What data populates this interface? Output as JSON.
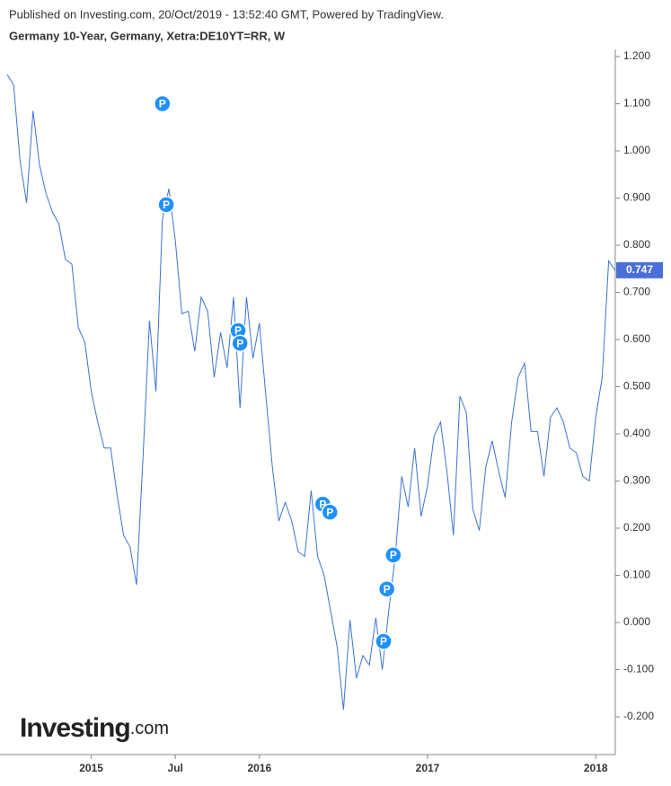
{
  "header": {
    "published": "Published on Investing.com, 20/Oct/2019 - 13:52:40 GMT, Powered by TradingView.",
    "logo_main": "Investing",
    "logo_suffix": ".com"
  },
  "chart_data": {
    "type": "line",
    "title": "Germany 10-Year, Germany, Xetra:DE10YT=RR, W",
    "categories": [
      null,
      null,
      null,
      null,
      null,
      null,
      null,
      null,
      null,
      null,
      null,
      null,
      null,
      "2015",
      null,
      null,
      null,
      null,
      null,
      null,
      null,
      null,
      null,
      null,
      null,
      null,
      "Jul",
      null,
      null,
      null,
      null,
      null,
      null,
      null,
      null,
      null,
      null,
      null,
      null,
      "2016",
      null,
      null,
      null,
      null,
      null,
      null,
      null,
      null,
      null,
      null,
      null,
      null,
      null,
      null,
      null,
      null,
      null,
      null,
      null,
      null,
      null,
      null,
      null,
      null,
      null,
      "2017",
      null,
      null,
      null,
      null,
      null,
      null,
      null,
      null,
      null,
      null,
      null,
      null,
      null,
      null,
      null,
      null,
      null,
      null,
      null,
      null,
      null,
      null,
      null,
      null,
      null,
      "2018",
      null,
      null,
      null
    ],
    "series": [
      {
        "name": "DE10YT",
        "color": "#3b73d4",
        "values": [
          1.162,
          1.14,
          0.977,
          0.89,
          1.085,
          0.97,
          0.91,
          0.87,
          0.845,
          0.77,
          0.76,
          0.625,
          0.595,
          0.49,
          0.425,
          0.37,
          0.37,
          0.27,
          0.185,
          0.16,
          0.08,
          0.35,
          0.64,
          0.49,
          0.855,
          0.92,
          0.81,
          0.655,
          0.66,
          0.575,
          0.69,
          0.66,
          0.52,
          0.615,
          0.54,
          0.69,
          0.455,
          0.69,
          0.56,
          0.635,
          0.48,
          0.33,
          0.215,
          0.255,
          0.215,
          0.15,
          0.14,
          0.28,
          0.14,
          0.1,
          0.025,
          -0.05,
          -0.185,
          0.005,
          -0.118,
          -0.07,
          -0.09,
          0.01,
          -0.1,
          0.025,
          0.14,
          0.31,
          0.245,
          0.37,
          0.225,
          0.29,
          0.395,
          0.425,
          0.32,
          0.185,
          0.48,
          0.445,
          0.24,
          0.195,
          0.33,
          0.385,
          0.32,
          0.265,
          0.425,
          0.52,
          0.55,
          0.405,
          0.405,
          0.31,
          0.435,
          0.455,
          0.425,
          0.37,
          0.36,
          0.31,
          0.3,
          0.435,
          0.52,
          0.767,
          0.747
        ]
      }
    ],
    "ylim": [
      -0.28,
      1.26
    ],
    "yticks": [
      {
        "value": -0.2,
        "label": "-0.200"
      },
      {
        "value": -0.1,
        "label": "-0.100"
      },
      {
        "value": 0,
        "label": "0.000"
      },
      {
        "value": 0.1,
        "label": "0.100"
      },
      {
        "value": 0.2,
        "label": "0.200"
      },
      {
        "value": 0.3,
        "label": "0.300"
      },
      {
        "value": 0.4,
        "label": "0.400"
      },
      {
        "value": 0.5,
        "label": "0.500"
      },
      {
        "value": 0.6,
        "label": "0.600"
      },
      {
        "value": 0.7,
        "label": "0.700"
      },
      {
        "value": 0.8,
        "label": "0.800"
      },
      {
        "value": 0.9,
        "label": "0.900"
      },
      {
        "value": 1.0,
        "label": "1.000"
      },
      {
        "value": 1.1,
        "label": "1.100"
      },
      {
        "value": 1.2,
        "label": "1.200"
      }
    ],
    "last_value_color": "#4a6fd8",
    "events": [
      {
        "label": "P",
        "x_index": 24,
        "value": 1.1
      },
      {
        "label": "P",
        "x_index": 24.6,
        "value": 0.886
      },
      {
        "label": "P",
        "x_index": 35.7,
        "value": 0.619
      },
      {
        "label": "P",
        "x_index": 36,
        "value": 0.592
      },
      {
        "label": "P",
        "x_index": 48.8,
        "value": 0.251
      },
      {
        "label": "P",
        "x_index": 49.9,
        "value": 0.234
      },
      {
        "label": "P",
        "x_index": 59.7,
        "value": 0.143
      },
      {
        "label": "P",
        "x_index": 58.7,
        "value": 0.071
      },
      {
        "label": "P",
        "x_index": 58.2,
        "value": -0.04
      }
    ]
  }
}
